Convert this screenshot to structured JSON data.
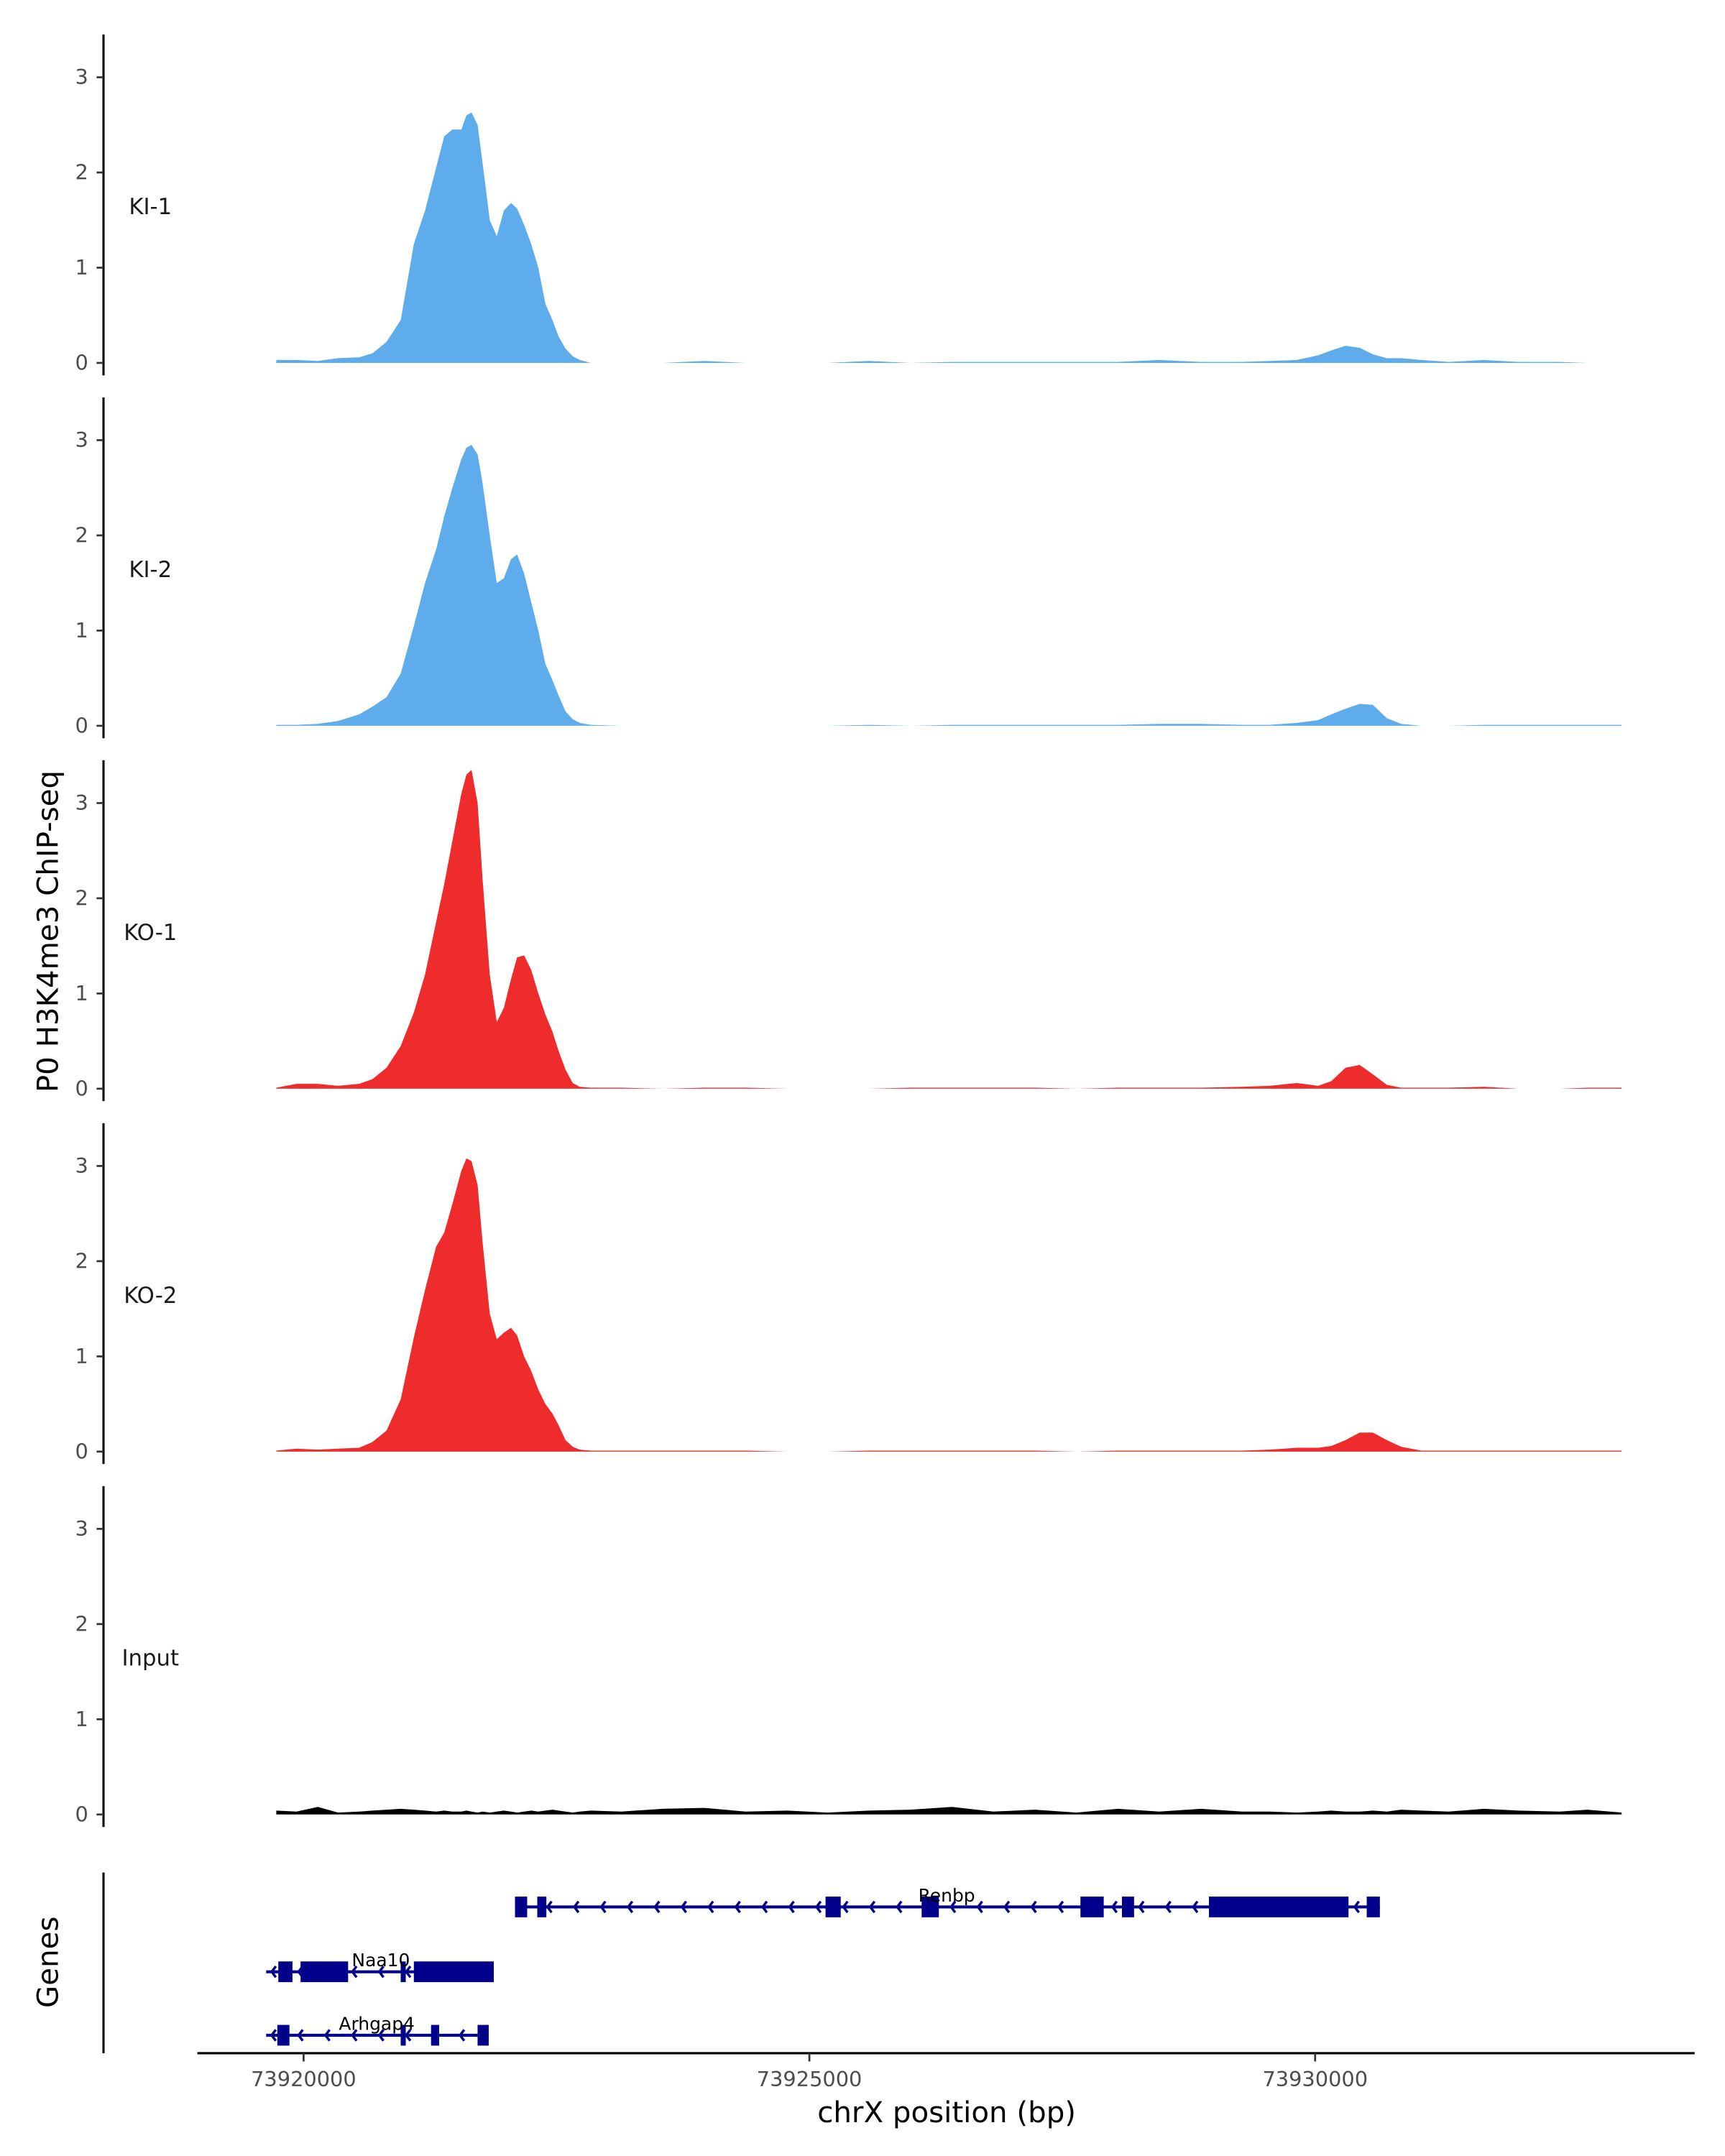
{
  "chart_data": {
    "type": "area",
    "ylabel": "P0 H3K4me3 ChIP-seq",
    "xlabel": "chrX position (bp)",
    "xlim": [
      73918950,
      73934350
    ],
    "ylim": [
      0,
      3.45
    ],
    "y_ticks": [
      0,
      1,
      2,
      3
    ],
    "x_ticks": [
      73920000,
      73925000,
      73930000
    ],
    "x_tick_labels": [
      "73920000",
      "73925000",
      "73930000"
    ],
    "grid": false,
    "positions": [
      73919730,
      73919930,
      73920140,
      73920340,
      73920550,
      73920680,
      73920820,
      73920960,
      73921090,
      73921200,
      73921310,
      73921390,
      73921470,
      73921560,
      73921610,
      73921660,
      73921720,
      73921770,
      73921840,
      73921910,
      73921980,
      73922050,
      73922110,
      73922180,
      73922250,
      73922320,
      73922390,
      73922460,
      73922520,
      73922590,
      73922660,
      73922730,
      73922840,
      73923140,
      73923550,
      73923960,
      73924370,
      73924780,
      73925180,
      73925590,
      73926000,
      73926410,
      73926820,
      73927230,
      73927640,
      73928050,
      73928460,
      73928870,
      73929280,
      73929550,
      73929820,
      73930030,
      73930160,
      73930300,
      73930440,
      73930570,
      73930710,
      73930850,
      73931050,
      73931320,
      73931670,
      73932010,
      73932420,
      73932690,
      73933030
    ],
    "series": [
      {
        "name": "KI-1",
        "color": "#5EACEC",
        "values": [
          0.03,
          0.03,
          0.02,
          0.05,
          0.06,
          0.1,
          0.22,
          0.45,
          1.25,
          1.6,
          2.05,
          2.38,
          2.45,
          2.45,
          2.6,
          2.63,
          2.5,
          2.1,
          1.5,
          1.33,
          1.6,
          1.68,
          1.62,
          1.45,
          1.25,
          1.0,
          0.62,
          0.45,
          0.28,
          0.15,
          0.07,
          0.03,
          0,
          0,
          0,
          0.02,
          0,
          0,
          0,
          0.02,
          0,
          0.01,
          0.01,
          0.01,
          0.01,
          0.01,
          0.03,
          0.01,
          0.01,
          0.02,
          0.03,
          0.08,
          0.13,
          0.18,
          0.16,
          0.09,
          0.05,
          0.05,
          0.03,
          0.01,
          0.03,
          0.01,
          0.01,
          0,
          0
        ]
      },
      {
        "name": "KI-2",
        "color": "#5EACEC",
        "values": [
          0.01,
          0.01,
          0.02,
          0.05,
          0.12,
          0.2,
          0.3,
          0.55,
          1.05,
          1.5,
          1.85,
          2.2,
          2.5,
          2.8,
          2.92,
          2.95,
          2.85,
          2.55,
          2.0,
          1.5,
          1.55,
          1.75,
          1.8,
          1.6,
          1.3,
          1.0,
          0.65,
          0.48,
          0.32,
          0.15,
          0.07,
          0.03,
          0.01,
          0,
          0,
          0,
          0,
          0,
          0,
          0.01,
          0,
          0.01,
          0.01,
          0.01,
          0.01,
          0.01,
          0.02,
          0.02,
          0.01,
          0.01,
          0.03,
          0.06,
          0.12,
          0.18,
          0.23,
          0.22,
          0.08,
          0.02,
          0,
          0,
          0.01,
          0.01,
          0.01,
          0.01,
          0.01
        ]
      },
      {
        "name": "KO-1",
        "color": "#EE2C2C",
        "values": [
          0.01,
          0.05,
          0.05,
          0.03,
          0.05,
          0.1,
          0.22,
          0.45,
          0.8,
          1.2,
          1.75,
          2.15,
          2.6,
          3.1,
          3.3,
          3.35,
          3.0,
          2.2,
          1.2,
          0.7,
          0.85,
          1.15,
          1.38,
          1.4,
          1.25,
          1.0,
          0.78,
          0.6,
          0.4,
          0.2,
          0.06,
          0.02,
          0.01,
          0.01,
          0,
          0.01,
          0.01,
          0,
          0,
          0,
          0.01,
          0.01,
          0.01,
          0.01,
          0,
          0.01,
          0.01,
          0.01,
          0.02,
          0.03,
          0.06,
          0.03,
          0.08,
          0.22,
          0.25,
          0.15,
          0.04,
          0.01,
          0.01,
          0.01,
          0.02,
          0,
          0,
          0.01,
          0.01
        ]
      },
      {
        "name": "KO-2",
        "color": "#EE2C2C",
        "values": [
          0.01,
          0.03,
          0.02,
          0.03,
          0.04,
          0.1,
          0.22,
          0.55,
          1.2,
          1.7,
          2.15,
          2.3,
          2.6,
          2.95,
          3.08,
          3.05,
          2.8,
          2.2,
          1.45,
          1.18,
          1.25,
          1.3,
          1.22,
          1.0,
          0.85,
          0.65,
          0.5,
          0.4,
          0.28,
          0.12,
          0.05,
          0.02,
          0.01,
          0.01,
          0.01,
          0.01,
          0.01,
          0,
          0,
          0.01,
          0.01,
          0.01,
          0.01,
          0.01,
          0,
          0.01,
          0.01,
          0.01,
          0.01,
          0.02,
          0.04,
          0.04,
          0.06,
          0.12,
          0.2,
          0.2,
          0.12,
          0.05,
          0.01,
          0.01,
          0.01,
          0.01,
          0.01,
          0.01,
          0.01
        ]
      },
      {
        "name": "Input",
        "color": "#000000",
        "values": [
          0.04,
          0.03,
          0.08,
          0.02,
          0.03,
          0.04,
          0.05,
          0.06,
          0.05,
          0.04,
          0.03,
          0.04,
          0.03,
          0.03,
          0.04,
          0.03,
          0.02,
          0.03,
          0.02,
          0.03,
          0.04,
          0.03,
          0.02,
          0.03,
          0.04,
          0.03,
          0.04,
          0.05,
          0.04,
          0.03,
          0.02,
          0.03,
          0.04,
          0.03,
          0.06,
          0.07,
          0.03,
          0.04,
          0.02,
          0.04,
          0.05,
          0.08,
          0.03,
          0.05,
          0.02,
          0.06,
          0.03,
          0.06,
          0.03,
          0.03,
          0.02,
          0.03,
          0.04,
          0.03,
          0.03,
          0.04,
          0.03,
          0.05,
          0.04,
          0.03,
          0.06,
          0.04,
          0.03,
          0.05,
          0.02
        ]
      }
    ],
    "genes_track": {
      "label": "Genes",
      "color": "#00008B",
      "genes": [
        {
          "name": "Renbp",
          "strand": "-",
          "start": 73922090,
          "end": 73930640,
          "exons": [
            [
              73922090,
              73922210
            ],
            [
              73922310,
              73922400
            ],
            [
              73925160,
              73925310
            ],
            [
              73926110,
              73926280
            ],
            [
              73927680,
              73927910
            ],
            [
              73928090,
              73928210
            ],
            [
              73928950,
              73930330
            ],
            [
              73930510,
              73930640
            ]
          ]
        },
        {
          "name": "Naa10",
          "strand": "-",
          "start": 73919630,
          "end": 73921880,
          "exons": [
            [
              73919750,
              73919890
            ],
            [
              73919970,
              73920440
            ],
            [
              73920960,
              73921010
            ],
            [
              73921090,
              73921880
            ]
          ]
        },
        {
          "name": "Arhgap4",
          "strand": "-",
          "start": 73919630,
          "end": 73921830,
          "exons": [
            [
              73919740,
              73919860
            ],
            [
              73920960,
              73921010
            ],
            [
              73921260,
              73921340
            ],
            [
              73921720,
              73921830
            ]
          ]
        }
      ]
    }
  }
}
